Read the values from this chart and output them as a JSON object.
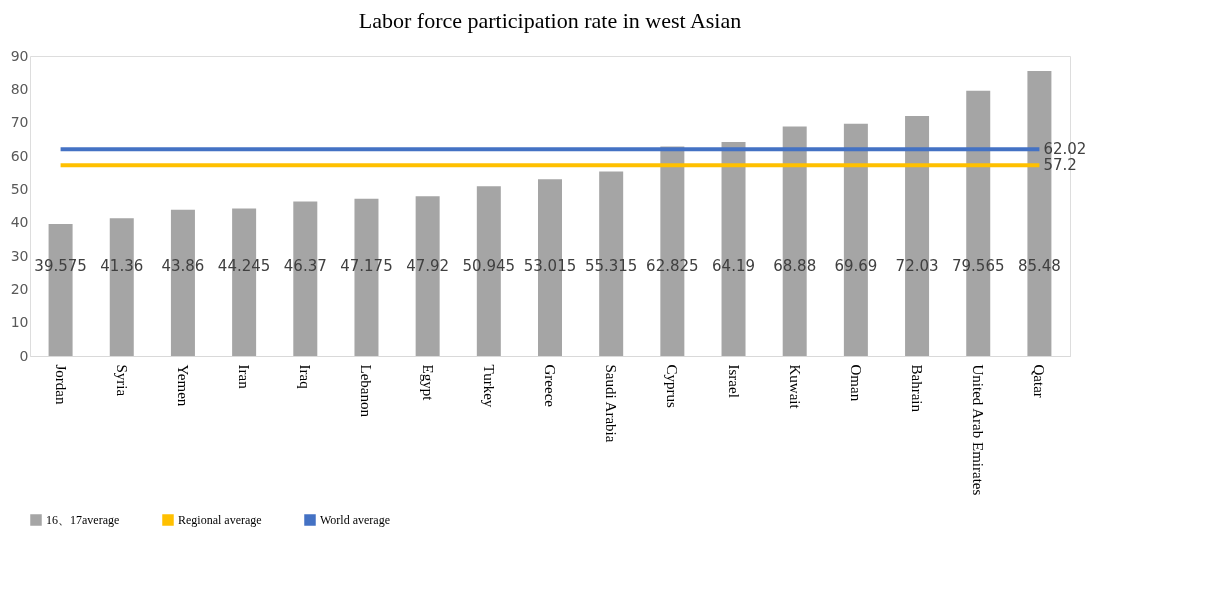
{
  "chart_data": {
    "type": "bar",
    "title": "Labor force participation rate in west Asian",
    "categories": [
      "Jordan",
      "Syria",
      "Yemen",
      "Iran",
      "Iraq",
      "Lebanon",
      "Egypt",
      "Turkey",
      "Greece",
      "Saudi Arabia",
      "Cyprus",
      "Israel",
      "Kuwait",
      "Oman",
      "Bahrain",
      "United Arab Emirates",
      "Qatar"
    ],
    "series": [
      {
        "name": "16、17average",
        "color": "#a5a5a5",
        "values": [
          39.575,
          41.36,
          43.86,
          44.245,
          46.37,
          47.175,
          47.92,
          50.945,
          53.015,
          55.315,
          62.825,
          64.19,
          68.88,
          69.69,
          72.03,
          79.565,
          85.48
        ]
      }
    ],
    "ref_lines": [
      {
        "axis": "y",
        "value": 57.2,
        "label": "Regional average",
        "color": "#ffc000"
      },
      {
        "axis": "y",
        "value": 62.02,
        "label": "World average",
        "color": "#4472c4"
      }
    ],
    "annotations": [
      {
        "text": "62.02",
        "x": "Qatar",
        "y": 62.02
      },
      {
        "text": "57.2",
        "x": "Qatar",
        "y": 57.2
      }
    ],
    "ylim": [
      0,
      90
    ],
    "yticks": [
      0,
      10,
      20,
      30,
      40,
      50,
      60,
      70,
      80,
      90
    ],
    "data_labels": true,
    "legend": "bottom",
    "grid": false
  }
}
